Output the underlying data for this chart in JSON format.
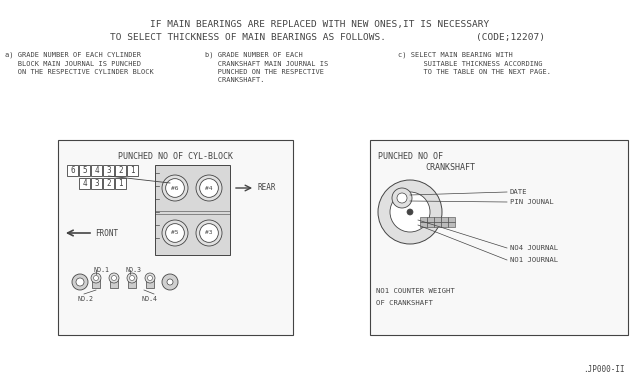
{
  "bg_color": "#ffffff",
  "line_color": "#444444",
  "title_line1": "IF MAIN BEARINGS ARE REPLACED WITH NEW ONES,IT IS NECESSARY",
  "title_line2": "TO SELECT THICKNESS OF MAIN BEARINGS AS FOLLOWS.",
  "title_code": "(CODE;12207)",
  "note_a": "a) GRADE NUMBER OF EACH CYLINDER\n   BLOCK MAIN JOURNAL IS PUNCHED\n   ON THE RESPECTIVE CYLINDER BLOCK",
  "note_b": "b) GRADE NUMBER OF EACH\n   CRANKSHAFT MAIN JOURNAL IS\n   PUNCHED ON THE RESPECTIVE\n   CRANKSHAFT.",
  "note_c": "c) SELECT MAIN BEARING WITH\n      SUITABLE THICKNESS ACCORDING\n      TO THE TABLE ON THE NEXT PAGE.",
  "box1_title": "PUNCHED NO OF CYL-BLOCK",
  "box2_title_line1": "PUNCHED NO OF",
  "box2_title_line2": "CRANKSHAFT",
  "nums_row1": [
    "6",
    "5",
    "4",
    "3",
    "2",
    "1"
  ],
  "nums_row2": [
    "4",
    "3",
    "2",
    "1"
  ],
  "footer": ".JP000-II"
}
